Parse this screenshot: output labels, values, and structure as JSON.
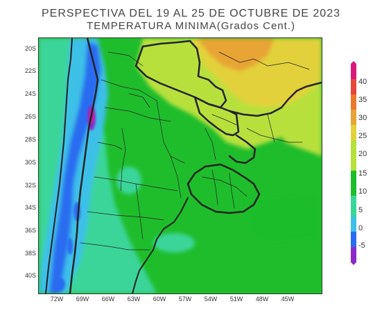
{
  "title": {
    "line1": "PERSPECTIVA DEL 19 AL 25 DE OCTUBRE DE 2023",
    "line2": "TEMPERATURA MINIMA(Grados Cent.)"
  },
  "axes": {
    "y_labels": [
      "20S",
      "22S",
      "24S",
      "26S",
      "28S",
      "30S",
      "32S",
      "34S",
      "36S",
      "38S",
      "40S"
    ],
    "x_labels": [
      "72W",
      "69W",
      "66W",
      "63W",
      "60W",
      "57W",
      "54W",
      "51W",
      "48W",
      "45W"
    ]
  },
  "colorbar": {
    "ticks": [
      "40",
      "35",
      "30",
      "25",
      "20",
      "15",
      "10",
      "5",
      "0",
      "-5"
    ],
    "colors": {
      "above_40": "#d6197a",
      "35_40": "#e8453c",
      "30_35": "#ec7a2c",
      "25_30": "#e8a436",
      "20_25": "#e3d13a",
      "15_20": "#b8e03c",
      "10_15": "#1fbd2c",
      "5_10": "#3ad59a",
      "0_5": "#3cc0e8",
      "minus5_0": "#2a6cf0",
      "below_minus5": "#8a2ac8"
    }
  }
}
